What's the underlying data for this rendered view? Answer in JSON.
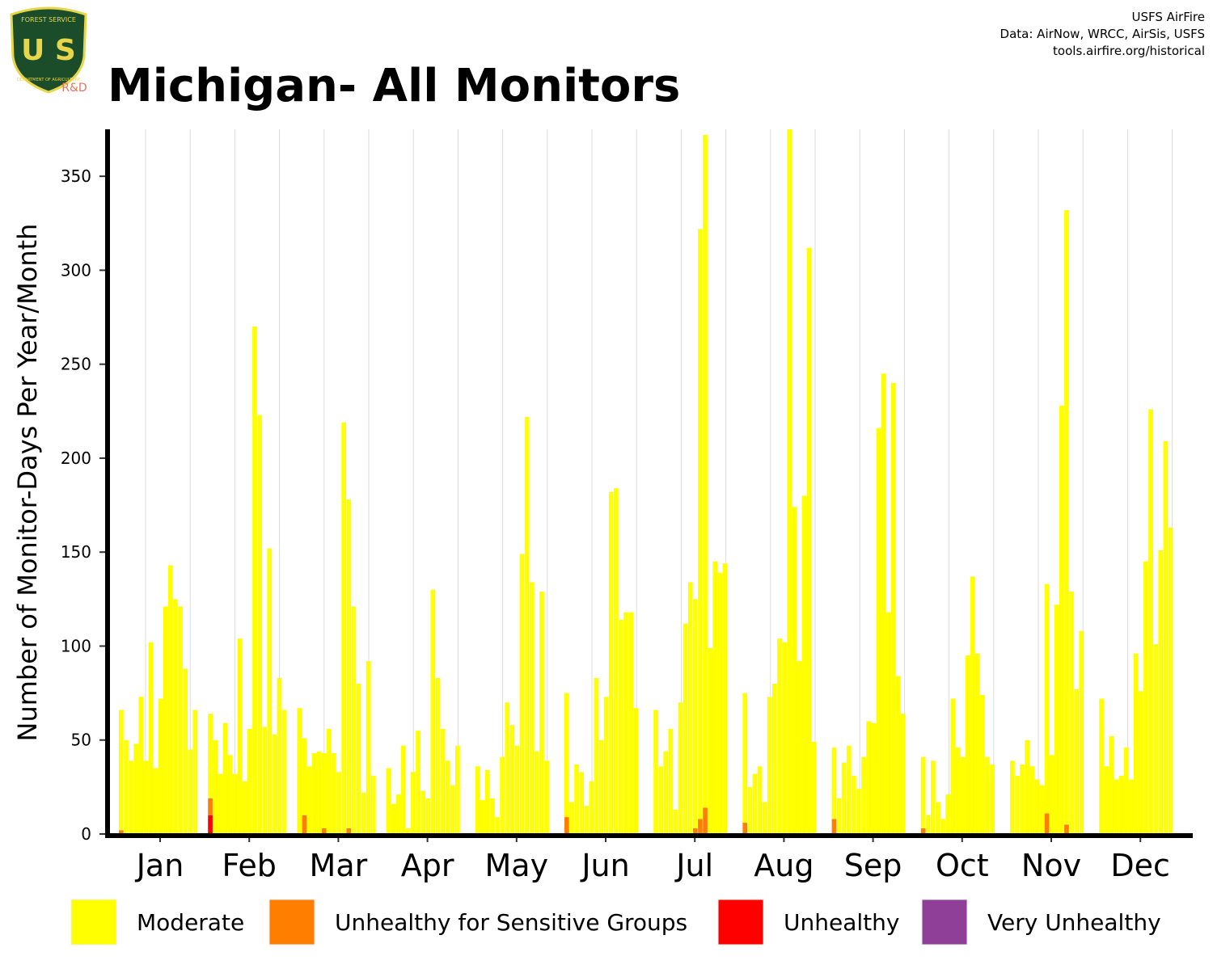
{
  "chart_data": {
    "type": "bar",
    "stacked": true,
    "title": "Michigan- All Monitors",
    "attribution": [
      "USFS AirFire",
      "Data: AirNow, WRCC, AirSis, USFS",
      "tools.airfire.org/historical"
    ],
    "logo": {
      "top": "FOREST SERVICE",
      "letters": "U S",
      "bottom": "DEPARTMENT OF AGRICULTURE",
      "tag": "R&D"
    },
    "y_label": "Number of Monitor-Days Per Year/Month",
    "categories": [
      "Jan",
      "Feb",
      "Mar",
      "Apr",
      "May",
      "Jun",
      "Jul",
      "Aug",
      "Sep",
      "Oct",
      "Nov",
      "Dec"
    ],
    "ylim": [
      0,
      375
    ],
    "yticks": [
      0,
      50,
      100,
      150,
      200,
      250,
      300,
      350
    ],
    "series": [
      {
        "name": "Moderate",
        "color": "#ffff00",
        "values": [
          [
            64,
            50,
            39,
            48,
            73,
            39,
            102,
            35,
            72,
            121,
            143,
            125,
            121,
            88,
            45,
            66
          ],
          [
            45,
            50,
            32,
            59,
            42,
            32,
            104,
            28,
            56,
            270,
            223,
            57,
            152,
            53,
            83,
            66
          ],
          [
            67,
            41,
            36,
            43,
            44,
            40,
            56,
            43,
            33,
            219,
            175,
            121,
            80,
            22,
            92,
            31
          ],
          [
            35,
            16,
            21,
            47,
            3,
            33,
            55,
            23,
            19,
            130,
            83,
            56,
            39,
            26,
            47
          ],
          [
            36,
            18,
            34,
            19,
            9,
            41,
            70,
            58,
            47,
            149,
            222,
            134,
            44,
            129,
            39
          ],
          [
            66,
            17,
            37,
            33,
            15,
            28,
            83,
            50,
            73,
            182,
            184,
            114,
            118,
            118,
            67
          ],
          [
            66,
            36,
            44,
            56,
            13,
            70,
            112,
            134,
            122,
            314,
            358,
            99,
            145,
            139,
            144
          ],
          [
            69,
            25,
            32,
            36,
            17,
            73,
            80,
            104,
            102,
            375,
            174,
            92,
            180,
            312,
            49
          ],
          [
            38,
            19,
            38,
            47,
            31,
            24,
            41,
            60,
            59,
            216,
            245,
            118,
            240,
            84,
            64
          ],
          [
            38,
            10,
            39,
            17,
            8,
            21,
            72,
            46,
            41,
            95,
            137,
            96,
            74,
            41,
            37
          ],
          [
            39,
            31,
            37,
            50,
            36,
            29,
            26,
            122,
            42,
            122,
            228,
            327,
            129,
            77,
            108
          ],
          [
            72,
            36,
            52,
            29,
            31,
            46,
            29,
            96,
            76,
            145,
            226,
            101,
            151,
            209,
            163
          ]
        ]
      },
      {
        "name": "Unhealthy for Sensitive Groups",
        "color": "#ff7e00",
        "values": [
          [
            2,
            0,
            0,
            0,
            0,
            0,
            0,
            0,
            0,
            0,
            0,
            0,
            0,
            0,
            0,
            0
          ],
          [
            9,
            0,
            0,
            0,
            0,
            0,
            0,
            0,
            0,
            0,
            0,
            0,
            0,
            0,
            0,
            0
          ],
          [
            0,
            10,
            0,
            0,
            0,
            3,
            0,
            0,
            0,
            0,
            3,
            0,
            0,
            0,
            0,
            0
          ],
          [
            0,
            0,
            0,
            0,
            0,
            0,
            0,
            0,
            0,
            0,
            0,
            0,
            0,
            0,
            0
          ],
          [
            0,
            0,
            0,
            0,
            0,
            0,
            0,
            0,
            0,
            0,
            0,
            0,
            0,
            0,
            0
          ],
          [
            9,
            0,
            0,
            0,
            0,
            0,
            0,
            0,
            0,
            0,
            0,
            0,
            0,
            0,
            0
          ],
          [
            0,
            0,
            0,
            0,
            0,
            0,
            0,
            0,
            3,
            8,
            14,
            0,
            0,
            0,
            0
          ],
          [
            6,
            0,
            0,
            0,
            0,
            0,
            0,
            0,
            0,
            0,
            0,
            0,
            0,
            0,
            0
          ],
          [
            8,
            0,
            0,
            0,
            0,
            0,
            0,
            0,
            0,
            0,
            0,
            0,
            0,
            0,
            0
          ],
          [
            3,
            0,
            0,
            0,
            0,
            0,
            0,
            0,
            0,
            0,
            0,
            0,
            0,
            0,
            0
          ],
          [
            0,
            0,
            0,
            0,
            0,
            0,
            0,
            11,
            0,
            0,
            0,
            5,
            0,
            0,
            0
          ],
          [
            0,
            0,
            0,
            0,
            0,
            0,
            0,
            0,
            0,
            0,
            0,
            0,
            0,
            0,
            0
          ]
        ]
      },
      {
        "name": "Unhealthy",
        "color": "#ff0000",
        "values": [
          [
            0,
            0,
            0,
            0,
            0,
            0,
            0,
            0,
            0,
            0,
            0,
            0,
            0,
            0,
            0,
            0
          ],
          [
            10,
            0,
            0,
            0,
            0,
            0,
            0,
            0,
            0,
            0,
            0,
            0,
            0,
            0,
            0,
            0
          ],
          [
            0,
            0,
            0,
            0,
            0,
            0,
            0,
            0,
            0,
            0,
            0,
            0,
            0,
            0,
            0,
            0
          ],
          [
            0,
            0,
            0,
            0,
            0,
            0,
            0,
            0,
            0,
            0,
            0,
            0,
            0,
            0,
            0
          ],
          [
            0,
            0,
            0,
            0,
            0,
            0,
            0,
            0,
            0,
            0,
            0,
            0,
            0,
            0,
            0
          ],
          [
            0,
            0,
            0,
            0,
            0,
            0,
            0,
            0,
            0,
            0,
            0,
            0,
            0,
            0,
            0
          ],
          [
            0,
            0,
            0,
            0,
            0,
            0,
            0,
            0,
            0,
            0,
            0,
            0,
            0,
            0,
            0
          ],
          [
            0,
            0,
            0,
            0,
            0,
            0,
            0,
            0,
            0,
            0,
            0,
            0,
            0,
            0,
            0
          ],
          [
            0,
            0,
            0,
            0,
            0,
            0,
            0,
            0,
            0,
            0,
            0,
            0,
            0,
            0,
            0
          ],
          [
            0,
            0,
            0,
            0,
            0,
            0,
            0,
            0,
            0,
            0,
            0,
            0,
            0,
            0,
            0
          ],
          [
            0,
            0,
            0,
            0,
            0,
            0,
            0,
            0,
            0,
            0,
            0,
            0,
            0,
            0,
            0
          ],
          [
            0,
            0,
            0,
            0,
            0,
            0,
            0,
            0,
            0,
            0,
            0,
            0,
            0,
            0,
            0
          ]
        ]
      },
      {
        "name": "Very Unhealthy",
        "color": "#8f3f97",
        "values": [
          [
            0,
            0,
            0,
            0,
            0,
            0,
            0,
            0,
            0,
            0,
            0,
            0,
            0,
            0,
            0,
            0
          ],
          [
            0,
            0,
            0,
            0,
            0,
            0,
            0,
            0,
            0,
            0,
            0,
            0,
            0,
            0,
            0,
            0
          ],
          [
            0,
            0,
            0,
            0,
            0,
            0,
            0,
            0,
            0,
            0,
            0,
            0,
            0,
            0,
            0,
            0
          ],
          [
            0,
            0,
            0,
            0,
            0,
            0,
            0,
            0,
            0,
            0,
            0,
            0,
            0,
            0,
            0
          ],
          [
            0,
            0,
            0,
            0,
            0,
            0,
            0,
            0,
            0,
            0,
            0,
            0,
            0,
            0,
            0
          ],
          [
            0,
            0,
            0,
            0,
            0,
            0,
            0,
            0,
            0,
            0,
            0,
            0,
            0,
            0,
            0
          ],
          [
            0,
            0,
            0,
            0,
            0,
            0,
            0,
            0,
            0,
            0,
            0,
            0,
            0,
            0,
            0
          ],
          [
            0,
            0,
            0,
            0,
            0,
            0,
            0,
            0,
            0,
            0,
            0,
            0,
            0,
            0,
            0
          ],
          [
            0,
            0,
            0,
            0,
            0,
            0,
            0,
            0,
            0,
            0,
            0,
            0,
            0,
            0,
            0
          ],
          [
            0,
            0,
            0,
            0,
            0,
            0,
            0,
            0,
            0,
            0,
            0,
            0,
            0,
            0,
            0
          ],
          [
            0,
            0,
            0,
            0,
            0,
            0,
            0,
            0,
            0,
            0,
            0,
            0,
            0,
            0,
            0
          ],
          [
            0,
            0,
            0,
            0,
            0,
            0,
            0,
            0,
            0,
            0,
            0,
            0,
            0,
            0,
            0
          ]
        ]
      }
    ]
  }
}
